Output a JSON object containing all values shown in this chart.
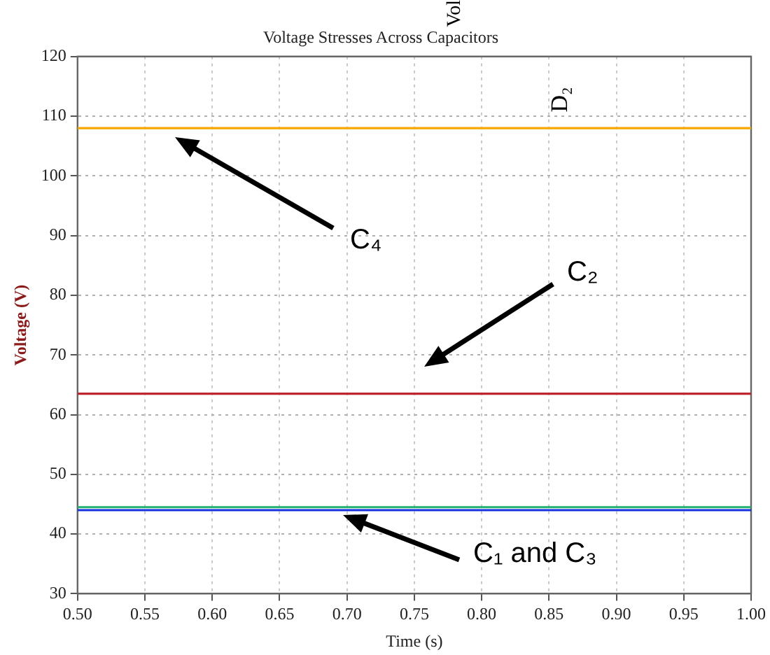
{
  "chart_data": {
    "type": "line",
    "title": "Voltage Stresses Across Capacitors",
    "xlabel": "Time (s)",
    "ylabel": "Voltage (V)",
    "x": [
      0.5,
      1.0
    ],
    "series": [
      {
        "color": "#f7a800",
        "values": [
          108,
          108
        ]
      },
      {
        "color": "#c0262d",
        "values": [
          63.5,
          63.5
        ]
      },
      {
        "color": "#1530e0",
        "values": [
          44.0,
          44.0
        ]
      },
      {
        "color": "#20b070",
        "values": [
          44.5,
          44.5
        ]
      }
    ],
    "xlim": [
      0.5,
      1.0
    ],
    "xticks": [
      {
        "value": 0.5,
        "label": "0.50"
      },
      0.55,
      {
        "value": 0.6,
        "label": "0.60"
      },
      0.65,
      {
        "value": 0.7,
        "label": "0.70"
      },
      0.75,
      {
        "value": 0.8,
        "label": "0.80"
      },
      0.85,
      {
        "value": 0.9,
        "label": "0.90"
      },
      0.95,
      {
        "value": 1.0,
        "label": "1.00"
      }
    ],
    "ylim": [
      30,
      120
    ],
    "yticks": [
      30,
      40,
      50,
      60,
      70,
      80,
      90,
      100,
      110,
      120
    ],
    "grid": true,
    "legend": false,
    "marker": "none",
    "line_style": "solid",
    "annotations": [
      "C₄",
      "C₂",
      "C₁ and C₃",
      "Vol",
      "D₂"
    ]
  }
}
